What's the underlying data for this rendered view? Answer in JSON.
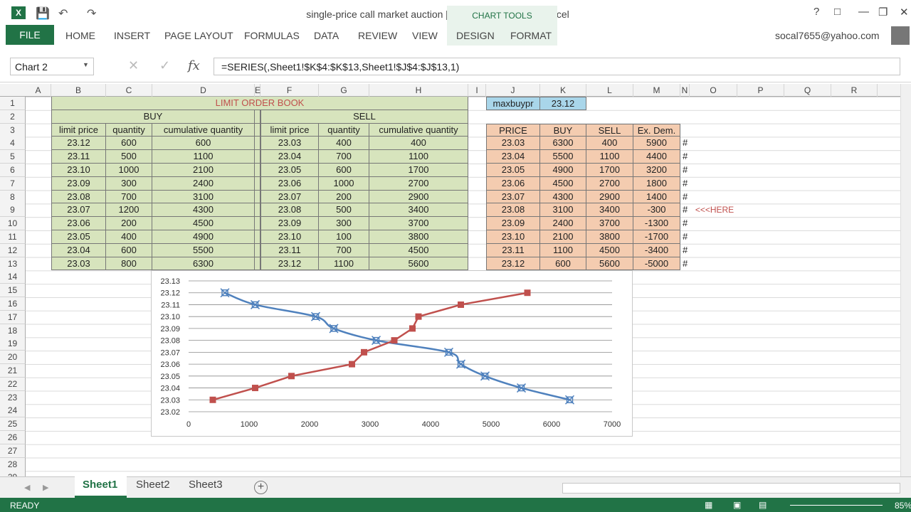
{
  "title": "single-price call market auction  [Compatibility Mode] - Excel",
  "chart_tools": "CHART TOOLS",
  "tabs": [
    "FILE",
    "HOME",
    "INSERT",
    "PAGE LAYOUT",
    "FORMULAS",
    "DATA",
    "REVIEW",
    "VIEW",
    "DESIGN",
    "FORMAT"
  ],
  "user": "socal7655@yahoo.com",
  "name_box": "Chart 2",
  "formula": "=SERIES(,Sheet1!$K$4:$K$13,Sheet1!$J$4:$J$13,1)",
  "columns": [
    "A",
    "B",
    "C",
    "D",
    "E",
    "F",
    "G",
    "H",
    "I",
    "J",
    "K",
    "L",
    "M",
    "N",
    "O",
    "P",
    "Q",
    "R"
  ],
  "rows": [
    "1",
    "2",
    "3",
    "4",
    "5",
    "6",
    "7",
    "8",
    "9",
    "10",
    "11",
    "12",
    "13",
    "14",
    "15",
    "16",
    "17",
    "18",
    "19",
    "20",
    "21",
    "22",
    "23",
    "24",
    "25",
    "26",
    "27",
    "28",
    "29"
  ],
  "book": {
    "title": "LIMIT ORDER BOOK",
    "buy": "BUY",
    "sell": "SELL",
    "headers": [
      "limit price",
      "quantity",
      "cumulative quantity",
      "limit price",
      "quantity",
      "cumulative quantity"
    ],
    "rows": [
      [
        "23.12",
        "600",
        "600",
        "23.03",
        "400",
        "400"
      ],
      [
        "23.11",
        "500",
        "1100",
        "23.04",
        "700",
        "1100"
      ],
      [
        "23.10",
        "1000",
        "2100",
        "23.05",
        "600",
        "1700"
      ],
      [
        "23.09",
        "300",
        "2400",
        "23.06",
        "1000",
        "2700"
      ],
      [
        "23.08",
        "700",
        "3100",
        "23.07",
        "200",
        "2900"
      ],
      [
        "23.07",
        "1200",
        "4300",
        "23.08",
        "500",
        "3400"
      ],
      [
        "23.06",
        "200",
        "4500",
        "23.09",
        "300",
        "3700"
      ],
      [
        "23.05",
        "400",
        "4900",
        "23.10",
        "100",
        "3800"
      ],
      [
        "23.04",
        "600",
        "5500",
        "23.11",
        "700",
        "4500"
      ],
      [
        "23.03",
        "800",
        "6300",
        "23.12",
        "1100",
        "5600"
      ]
    ]
  },
  "side": {
    "label": "maxbuypr",
    "value": "23.12",
    "headers": [
      "PRICE",
      "BUY",
      "SELL",
      "Ex. Dem."
    ],
    "rows": [
      [
        "23.03",
        "6300",
        "400",
        "5900"
      ],
      [
        "23.04",
        "5500",
        "1100",
        "4400"
      ],
      [
        "23.05",
        "4900",
        "1700",
        "3200"
      ],
      [
        "23.06",
        "4500",
        "2700",
        "1800"
      ],
      [
        "23.07",
        "4300",
        "2900",
        "1400"
      ],
      [
        "23.08",
        "3100",
        "3400",
        "-300"
      ],
      [
        "23.09",
        "2400",
        "3700",
        "-1300"
      ],
      [
        "23.10",
        "2100",
        "3800",
        "-1700"
      ],
      [
        "23.11",
        "1100",
        "4500",
        "-3400"
      ],
      [
        "23.12",
        "600",
        "5600",
        "-5000"
      ]
    ],
    "hash": "#",
    "here": "<<<HERE"
  },
  "chart_data": {
    "type": "scatter",
    "xlim": [
      0,
      7000
    ],
    "ylim": [
      23.02,
      23.13
    ],
    "xticks": [
      "0",
      "1000",
      "2000",
      "3000",
      "4000",
      "5000",
      "6000",
      "7000"
    ],
    "yticks": [
      "23.02",
      "23.03",
      "23.04",
      "23.05",
      "23.06",
      "23.07",
      "23.08",
      "23.09",
      "23.10",
      "23.11",
      "23.12",
      "23.13"
    ],
    "series": [
      {
        "color": "#4f81bd",
        "x": [
          600,
          1100,
          2100,
          2400,
          3100,
          4300,
          4500,
          4900,
          5500,
          6300
        ],
        "y": [
          23.12,
          23.11,
          23.1,
          23.09,
          23.08,
          23.07,
          23.06,
          23.05,
          23.04,
          23.03
        ]
      },
      {
        "color": "#c0504d",
        "x": [
          400,
          1100,
          1700,
          2700,
          2900,
          3400,
          3700,
          3800,
          4500,
          5600
        ],
        "y": [
          23.03,
          23.04,
          23.05,
          23.06,
          23.07,
          23.08,
          23.09,
          23.1,
          23.11,
          23.12
        ]
      }
    ]
  },
  "sheets": [
    "Sheet1",
    "Sheet2",
    "Sheet3"
  ],
  "status": "READY",
  "zoom": "85%"
}
